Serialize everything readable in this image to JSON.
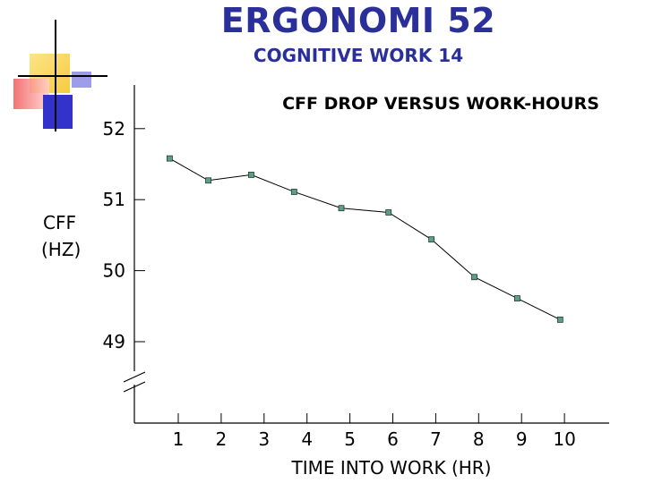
{
  "slide": {
    "title": "ERGONOMI 52",
    "subtitle": "COGNITIVE WORK 14"
  },
  "colors": {
    "title": "#2a2f9a",
    "deco_yellow": "#f7d23c",
    "deco_red": "#f25a5a",
    "deco_blue": "#3333cc",
    "marker_fill": "#5f9e86",
    "line": "#000000"
  },
  "chart_data": {
    "type": "line",
    "title": "CFF DROP VERSUS WORK-HOURS",
    "xlabel": "TIME INTO WORK (HR)",
    "ylabel_lines": [
      "CFF",
      "(HZ)"
    ],
    "x_ticks": [
      1,
      2,
      3,
      4,
      5,
      6,
      7,
      8,
      9,
      10
    ],
    "y_ticks": [
      49,
      50,
      51,
      52
    ],
    "ylim": [
      48.2,
      52.15
    ],
    "y_axis_break": true,
    "grid": false,
    "series": [
      {
        "x": [
          0.8,
          1.7,
          2.7,
          3.7,
          4.8,
          5.9,
          6.9,
          7.9,
          8.9,
          9.9
        ],
        "y": [
          51.58,
          51.27,
          51.35,
          51.11,
          50.88,
          50.82,
          50.44,
          49.91,
          49.61,
          49.31
        ]
      }
    ]
  }
}
